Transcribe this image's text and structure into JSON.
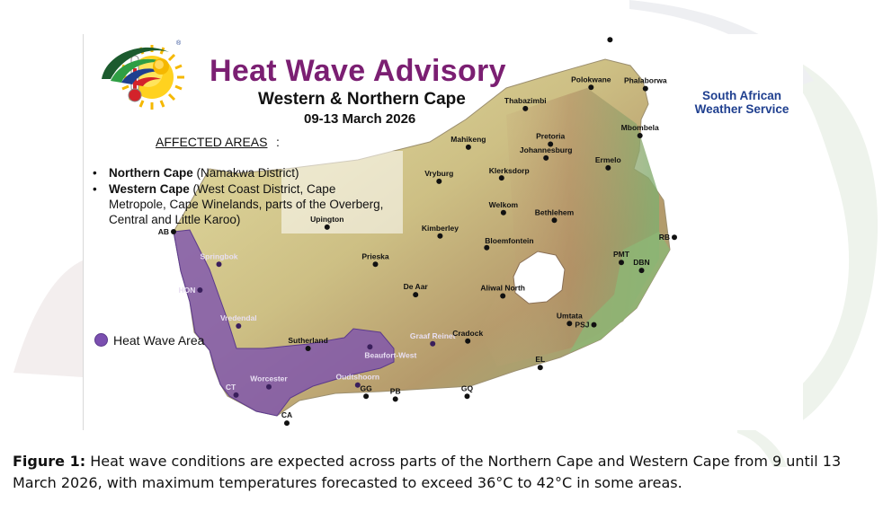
{
  "title": "Heat Wave Advisory",
  "subtitle": "Western & Northern Cape",
  "dates": "09-13 March 2026",
  "affected_heading": "AFFECTED AREAS",
  "affected_colon": ":",
  "affected_areas": [
    {
      "province": "Northern Cape",
      "detail": " (Namakwa District)"
    },
    {
      "province": "Western Cape",
      "detail": " (West Coast District, Cape Metropole, Cape Winelands, parts of the Overberg, Central and Little Karoo)"
    }
  ],
  "bullet_symbol": "•",
  "legend": {
    "label": "Heat Wave Area",
    "color": "#7b4fb0"
  },
  "logo": {
    "name": "South African Weather Service",
    "line1": "South African",
    "line2": "Weather Service",
    "registered": "®"
  },
  "caption": {
    "lead": "Figure 1:",
    "text": " Heat wave conditions are expected across parts of the Northern Cape and Western Cape from 9 until 13 March 2026, with maximum temperatures forecasted to exceed 36°C to 42°C in some areas."
  },
  "colors": {
    "title": "#7b1f72",
    "heatwave": "#7b4fb0",
    "logo_blue": "#1f3f8f"
  },
  "icons": [
    "sun-thermometer-icon",
    "saws-logo-icon"
  ],
  "places": [
    {
      "name": "Musina",
      "lon": 30.04,
      "lat": -22.35
    },
    {
      "name": "Polokwane",
      "lon": 29.45,
      "lat": -23.9
    },
    {
      "name": "Phalaborwa",
      "lon": 31.14,
      "lat": -23.94
    },
    {
      "name": "Thabazimbi",
      "lon": 27.41,
      "lat": -24.59
    },
    {
      "name": "Mbombela",
      "lon": 30.97,
      "lat": -25.47
    },
    {
      "name": "Mahikeng",
      "lon": 25.64,
      "lat": -25.85
    },
    {
      "name": "Pretoria",
      "lon": 28.19,
      "lat": -25.75
    },
    {
      "name": "Johannesburg",
      "lon": 28.05,
      "lat": -26.2
    },
    {
      "name": "Klerksdorp",
      "lon": 26.67,
      "lat": -26.85
    },
    {
      "name": "Ermelo",
      "lon": 29.98,
      "lat": -26.52
    },
    {
      "name": "Vryburg",
      "lon": 24.73,
      "lat": -26.96
    },
    {
      "name": "Welkom",
      "lon": 26.73,
      "lat": -27.98
    },
    {
      "name": "Bethlehem",
      "lon": 28.31,
      "lat": -28.23
    },
    {
      "name": "Upington",
      "lon": 21.25,
      "lat": -28.45
    },
    {
      "name": "Kimberley",
      "lon": 24.76,
      "lat": -28.74
    },
    {
      "name": "Bloemfontein",
      "lon": 26.21,
      "lat": -29.12
    },
    {
      "name": "RB",
      "lon": 32.04,
      "lat": -28.78
    },
    {
      "name": "Springbok",
      "lon": 17.89,
      "lat": -29.66
    },
    {
      "name": "AB",
      "lon": 16.48,
      "lat": -28.6
    },
    {
      "name": "Prieska",
      "lon": 22.75,
      "lat": -29.66
    },
    {
      "name": "PMT",
      "lon": 30.39,
      "lat": -29.6
    },
    {
      "name": "DBN",
      "lon": 31.02,
      "lat": -29.86
    },
    {
      "name": "HON",
      "lon": 17.3,
      "lat": -30.5
    },
    {
      "name": "De Aar",
      "lon": 24.0,
      "lat": -30.65
    },
    {
      "name": "Aliwal North",
      "lon": 26.71,
      "lat": -30.69
    },
    {
      "name": "PSJ",
      "lon": 29.54,
      "lat": -31.63
    },
    {
      "name": "Vredendal",
      "lon": 18.5,
      "lat": -31.67
    },
    {
      "name": "Umtata",
      "lon": 28.78,
      "lat": -31.59
    },
    {
      "name": "Sutherland",
      "lon": 20.66,
      "lat": -32.4
    },
    {
      "name": "Graaf Reinet",
      "lon": 24.53,
      "lat": -32.25
    },
    {
      "name": "Cradock",
      "lon": 25.62,
      "lat": -32.16
    },
    {
      "name": "Beaufort-West",
      "lon": 22.58,
      "lat": -32.35
    },
    {
      "name": "EL",
      "lon": 27.87,
      "lat": -33.02
    },
    {
      "name": "Worcester",
      "lon": 19.44,
      "lat": -33.65
    },
    {
      "name": "Oudtshoorn",
      "lon": 22.2,
      "lat": -33.59
    },
    {
      "name": "CT",
      "lon": 18.42,
      "lat": -33.92
    },
    {
      "name": "GG",
      "lon": 22.46,
      "lat": -33.96
    },
    {
      "name": "PB",
      "lon": 23.37,
      "lat": -34.05
    },
    {
      "name": "GQ",
      "lon": 25.6,
      "lat": -33.96
    },
    {
      "name": "CA",
      "lon": 20.0,
      "lat": -34.83
    }
  ]
}
